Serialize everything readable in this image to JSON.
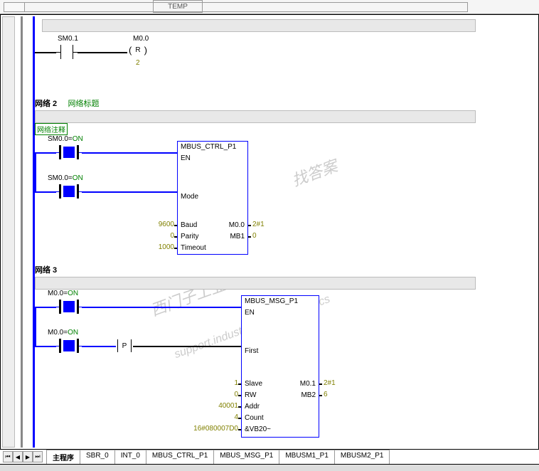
{
  "top_label": "TEMP",
  "net1": {
    "contact": "SM0.1",
    "coil": "M0.0",
    "coil_type": "R",
    "coil_value": "2"
  },
  "net2": {
    "header": "网络 2",
    "title": "网络标题",
    "comment": "网络注释",
    "contact1": {
      "addr": "SM0.0",
      "state": "ON"
    },
    "contact2": {
      "addr": "SM0.0",
      "state": "ON"
    },
    "block": {
      "name": "MBUS_CTRL_P1",
      "pins_left": [
        {
          "name": "EN",
          "val": ""
        },
        {
          "name": "Mode",
          "val": ""
        },
        {
          "name": "Baud",
          "val": "9600"
        },
        {
          "name": "Parity",
          "val": "0"
        },
        {
          "name": "Timeout",
          "val": "1000"
        }
      ],
      "pins_right": [
        {
          "name": "M0.0",
          "val": "2#1"
        },
        {
          "name": "MB1",
          "val": "0"
        }
      ]
    }
  },
  "net3": {
    "header": "网络 3",
    "contact1": {
      "addr": "M0.0",
      "state": "ON"
    },
    "contact2": {
      "addr": "M0.0",
      "state": "ON"
    },
    "edge": "P",
    "block": {
      "name": "MBUS_MSG_P1",
      "pins_left": [
        {
          "name": "EN",
          "val": ""
        },
        {
          "name": "First",
          "val": ""
        },
        {
          "name": "Slave",
          "val": "1"
        },
        {
          "name": "RW",
          "val": "0"
        },
        {
          "name": "Addr",
          "val": "40001"
        },
        {
          "name": "Count",
          "val": "4"
        },
        {
          "name": "&VB20~",
          "val": "16#080007D0"
        }
      ],
      "pins_right": [
        {
          "name": "M0.1",
          "val": "2#1"
        },
        {
          "name": "MB2",
          "val": "6"
        }
      ]
    }
  },
  "tabs": [
    "主程序",
    "SBR_0",
    "INT_0",
    "MBUS_CTRL_P1",
    "MBUS_MSG_P1",
    "MBUSM1_P1",
    "MBUSM2_P1"
  ],
  "active_tab": 0,
  "watermarks": [
    "找答案",
    "西门子工业",
    "support.industry.siemens.com/cs"
  ],
  "colors": {
    "blue": "#0000ff",
    "olive": "#808000",
    "green": "#008000",
    "gray": "#888888"
  }
}
